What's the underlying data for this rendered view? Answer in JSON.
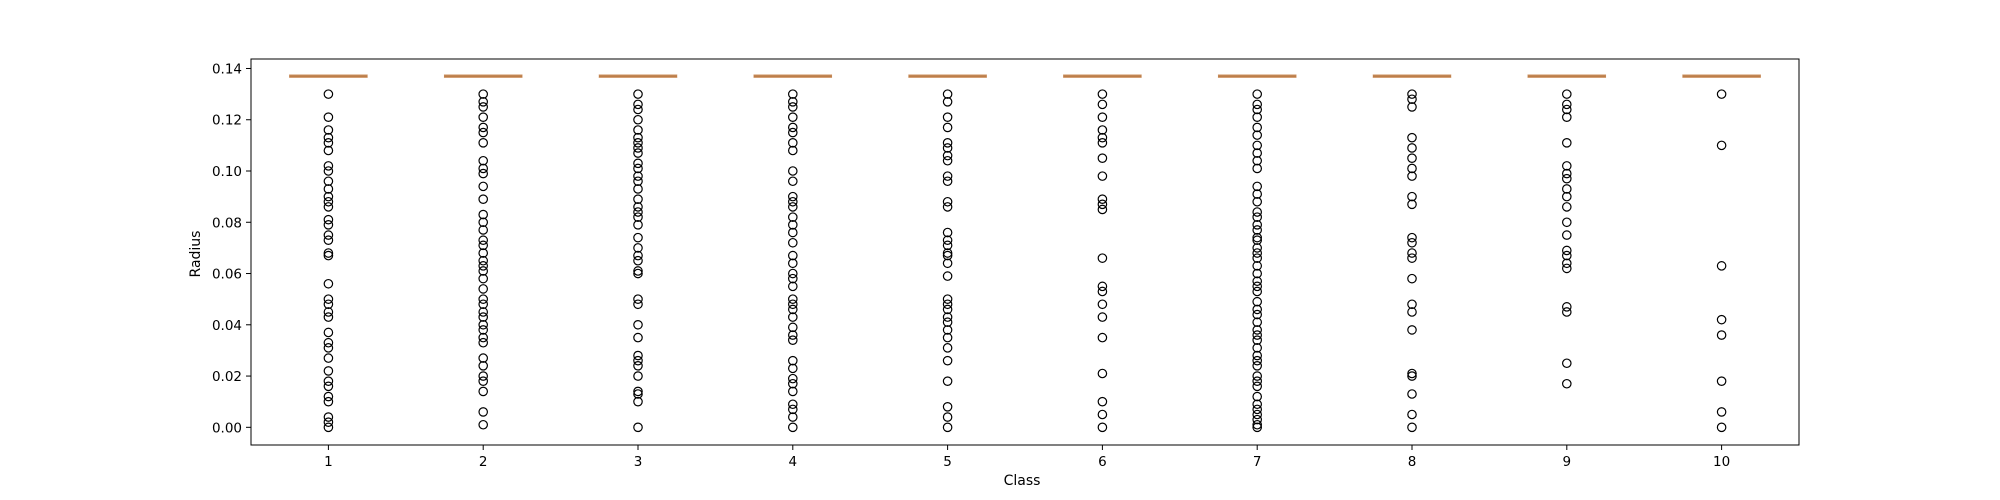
{
  "chart_data": {
    "type": "box",
    "title": "",
    "xlabel": "Class",
    "ylabel": "Radius",
    "ylim": [
      -0.0069,
      0.1437
    ],
    "xlim": [
      0.5,
      10.5
    ],
    "grid": false,
    "legend": "none",
    "y_ticks": [
      {
        "value": 0.0,
        "label": "0.00"
      },
      {
        "value": 0.02,
        "label": "0.02"
      },
      {
        "value": 0.04,
        "label": "0.04"
      },
      {
        "value": 0.06,
        "label": "0.06"
      },
      {
        "value": 0.08,
        "label": "0.08"
      },
      {
        "value": 0.1,
        "label": "0.10"
      },
      {
        "value": 0.12,
        "label": "0.12"
      },
      {
        "value": 0.14,
        "label": "0.14"
      }
    ],
    "categories": [
      "1",
      "2",
      "3",
      "4",
      "5",
      "6",
      "7",
      "8",
      "9",
      "10"
    ],
    "median": 0.137,
    "box_color": "#d29b6e",
    "median_color": "#b87a44",
    "outlier_color": "#000000",
    "outliers": [
      [
        0.13,
        0.121,
        0.116,
        0.113,
        0.111,
        0.108,
        0.102,
        0.1,
        0.096,
        0.093,
        0.09,
        0.088,
        0.086,
        0.081,
        0.079,
        0.075,
        0.073,
        0.068,
        0.067,
        0.056,
        0.05,
        0.048,
        0.045,
        0.043,
        0.037,
        0.033,
        0.031,
        0.027,
        0.022,
        0.018,
        0.016,
        0.012,
        0.01,
        0.004,
        0.002,
        0.0
      ],
      [
        0.13,
        0.127,
        0.125,
        0.121,
        0.117,
        0.115,
        0.111,
        0.104,
        0.101,
        0.099,
        0.094,
        0.089,
        0.083,
        0.08,
        0.077,
        0.073,
        0.071,
        0.068,
        0.065,
        0.063,
        0.061,
        0.058,
        0.054,
        0.05,
        0.048,
        0.045,
        0.043,
        0.04,
        0.038,
        0.035,
        0.033,
        0.027,
        0.024,
        0.02,
        0.018,
        0.014,
        0.006,
        0.001
      ],
      [
        0.13,
        0.126,
        0.124,
        0.12,
        0.116,
        0.113,
        0.111,
        0.109,
        0.107,
        0.103,
        0.101,
        0.098,
        0.096,
        0.093,
        0.089,
        0.086,
        0.084,
        0.082,
        0.079,
        0.074,
        0.07,
        0.067,
        0.065,
        0.061,
        0.06,
        0.05,
        0.048,
        0.04,
        0.035,
        0.028,
        0.026,
        0.024,
        0.02,
        0.014,
        0.013,
        0.01,
        0.0
      ],
      [
        0.13,
        0.127,
        0.125,
        0.121,
        0.117,
        0.115,
        0.111,
        0.108,
        0.1,
        0.096,
        0.09,
        0.088,
        0.086,
        0.082,
        0.079,
        0.076,
        0.072,
        0.067,
        0.064,
        0.06,
        0.058,
        0.055,
        0.05,
        0.048,
        0.046,
        0.043,
        0.039,
        0.036,
        0.034,
        0.026,
        0.023,
        0.019,
        0.017,
        0.014,
        0.009,
        0.007,
        0.004,
        0.0
      ],
      [
        0.13,
        0.127,
        0.121,
        0.117,
        0.111,
        0.109,
        0.106,
        0.104,
        0.098,
        0.096,
        0.088,
        0.086,
        0.076,
        0.073,
        0.071,
        0.068,
        0.067,
        0.064,
        0.059,
        0.05,
        0.048,
        0.046,
        0.043,
        0.041,
        0.038,
        0.035,
        0.031,
        0.026,
        0.018,
        0.008,
        0.004,
        0.0
      ],
      [
        0.13,
        0.126,
        0.121,
        0.116,
        0.113,
        0.111,
        0.105,
        0.098,
        0.089,
        0.087,
        0.085,
        0.066,
        0.055,
        0.053,
        0.048,
        0.043,
        0.035,
        0.021,
        0.01,
        0.005,
        0.0
      ],
      [
        0.13,
        0.126,
        0.124,
        0.121,
        0.117,
        0.114,
        0.11,
        0.107,
        0.104,
        0.101,
        0.094,
        0.091,
        0.088,
        0.084,
        0.082,
        0.079,
        0.077,
        0.074,
        0.073,
        0.07,
        0.068,
        0.066,
        0.063,
        0.06,
        0.057,
        0.055,
        0.053,
        0.049,
        0.046,
        0.044,
        0.041,
        0.038,
        0.036,
        0.034,
        0.031,
        0.028,
        0.026,
        0.024,
        0.02,
        0.018,
        0.016,
        0.012,
        0.009,
        0.007,
        0.005,
        0.003,
        0.001,
        0.0
      ],
      [
        0.13,
        0.128,
        0.125,
        0.113,
        0.109,
        0.105,
        0.101,
        0.098,
        0.09,
        0.087,
        0.074,
        0.072,
        0.068,
        0.066,
        0.058,
        0.048,
        0.045,
        0.038,
        0.021,
        0.02,
        0.013,
        0.005,
        0.0
      ],
      [
        0.13,
        0.126,
        0.124,
        0.121,
        0.111,
        0.102,
        0.099,
        0.097,
        0.093,
        0.09,
        0.086,
        0.08,
        0.075,
        0.069,
        0.067,
        0.064,
        0.062,
        0.047,
        0.045,
        0.025,
        0.017
      ],
      [
        0.13,
        0.11,
        0.063,
        0.042,
        0.036,
        0.018,
        0.006,
        0.0
      ]
    ]
  }
}
